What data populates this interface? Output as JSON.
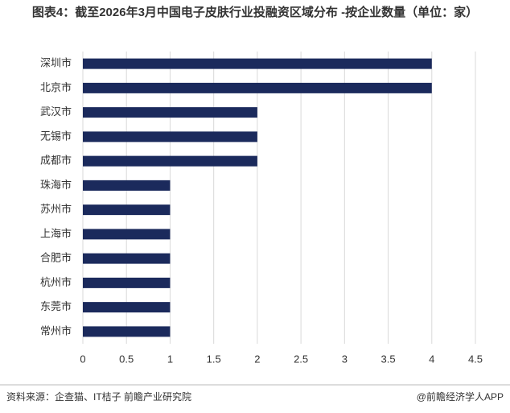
{
  "chart_data": {
    "type": "bar",
    "orientation": "horizontal",
    "title": "图表4：截至2026年3月中国电子皮肤行业投融资区域分布 -按企业数量（单位：家）",
    "categories": [
      "深圳市",
      "北京市",
      "武汉市",
      "无锡市",
      "成都市",
      "珠海市",
      "苏州市",
      "上海市",
      "合肥市",
      "杭州市",
      "东莞市",
      "常州市"
    ],
    "values": [
      4,
      4,
      2,
      2,
      2,
      1,
      1,
      1,
      1,
      1,
      1,
      1
    ],
    "color": "#1b2a5c",
    "xlim": [
      0,
      4.5
    ],
    "xticks": [
      0,
      0.5,
      1,
      1.5,
      2,
      2.5,
      3,
      3.5,
      4,
      4.5
    ],
    "grid": true
  },
  "footer": {
    "source": "资料来源：企查猫、IT桔子 前瞻产业研究院",
    "brand": "@前瞻经济学人APP"
  }
}
